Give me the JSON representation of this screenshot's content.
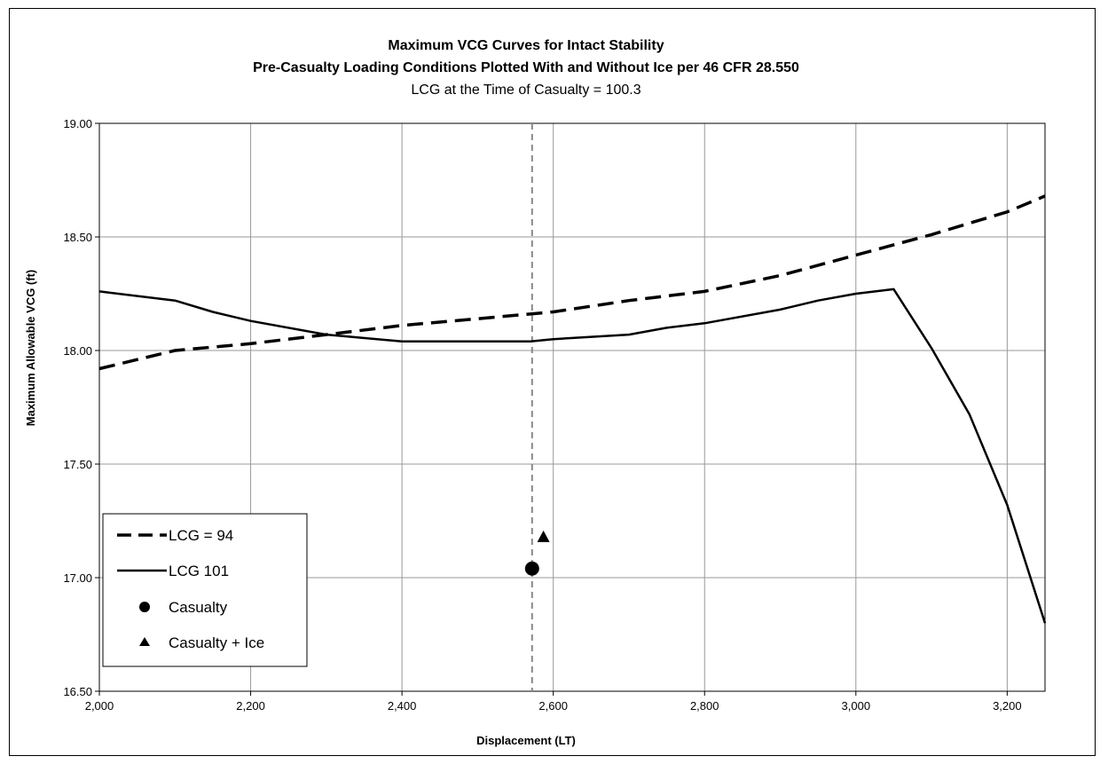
{
  "chart_data": {
    "type": "line",
    "title": "Maximum VCG Curves for Intact Stability",
    "subtitle": "Pre-Casualty Loading Conditions Plotted With and Without Ice per 46 CFR 28.550",
    "subtitle2": "LCG at the Time of Casualty = 100.3",
    "xlabel": "Displacement (LT)",
    "ylabel": "Maximum Allowable VCG (ft)",
    "xlim": [
      2000,
      3250
    ],
    "ylim": [
      16.5,
      19.0
    ],
    "x_ticks": [
      "2,000",
      "2,200",
      "2,400",
      "2,600",
      "2,800",
      "3,000",
      "3,200"
    ],
    "x_tick_values": [
      2000,
      2200,
      2400,
      2600,
      2800,
      3000,
      3200
    ],
    "y_ticks": [
      "19.00",
      "18.50",
      "18.00",
      "17.50",
      "17.00",
      "16.50"
    ],
    "y_tick_values": [
      19.0,
      18.5,
      18.0,
      17.5,
      17.0,
      16.5
    ],
    "grid": true,
    "legend_position": "bottom-left",
    "series": [
      {
        "name": "LCG = 94",
        "style": "dashed",
        "x": [
          2000,
          2100,
          2200,
          2300,
          2400,
          2500,
          2600,
          2700,
          2800,
          2900,
          3000,
          3100,
          3200,
          3250
        ],
        "y": [
          17.92,
          18.0,
          18.03,
          18.07,
          18.11,
          18.14,
          18.17,
          18.22,
          18.26,
          18.33,
          18.42,
          18.51,
          18.61,
          18.68
        ]
      },
      {
        "name": "LCG 101",
        "style": "solid",
        "x": [
          2000,
          2100,
          2150,
          2200,
          2300,
          2400,
          2500,
          2570,
          2600,
          2700,
          2750,
          2800,
          2900,
          2950,
          3000,
          3050,
          3100,
          3150,
          3200,
          3250
        ],
        "y": [
          18.26,
          18.22,
          18.17,
          18.13,
          18.07,
          18.04,
          18.04,
          18.04,
          18.05,
          18.07,
          18.1,
          18.12,
          18.18,
          18.22,
          18.25,
          18.27,
          18.01,
          17.72,
          17.32,
          16.8
        ]
      }
    ],
    "points": [
      {
        "name": "Casualty",
        "marker": "circle",
        "x": 2572,
        "y": 17.04
      },
      {
        "name": "Casualty + Ice",
        "marker": "triangle",
        "x": 2587,
        "y": 17.18
      }
    ],
    "reference_line": {
      "x": 2572,
      "style": "dashed",
      "color": "#888888"
    }
  }
}
